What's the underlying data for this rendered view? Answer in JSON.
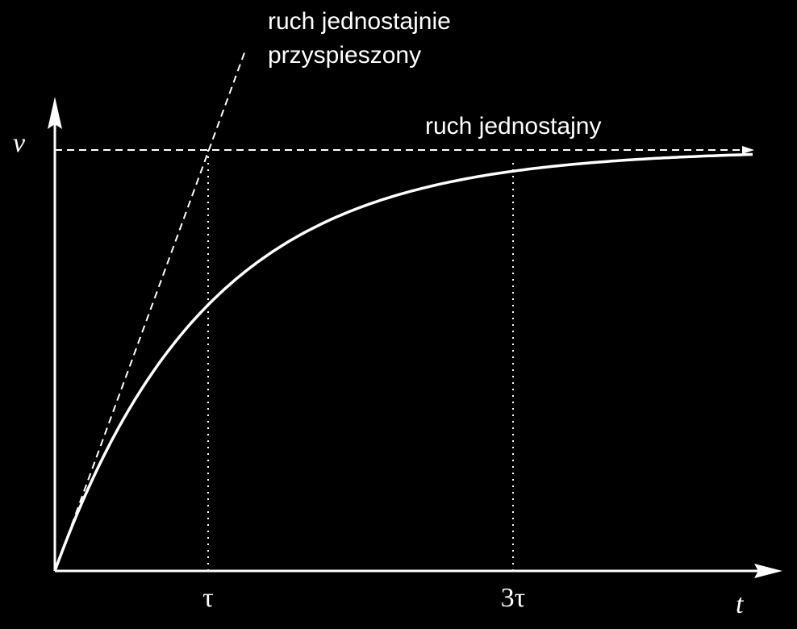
{
  "axes": {
    "y_label": "v",
    "x_label": "t"
  },
  "ticks": [
    "τ",
    "3τ"
  ],
  "annotations": {
    "accelerated": [
      "ruch jednostajnie",
      "przyspieszony"
    ],
    "uniform": "ruch jednostajny"
  }
}
